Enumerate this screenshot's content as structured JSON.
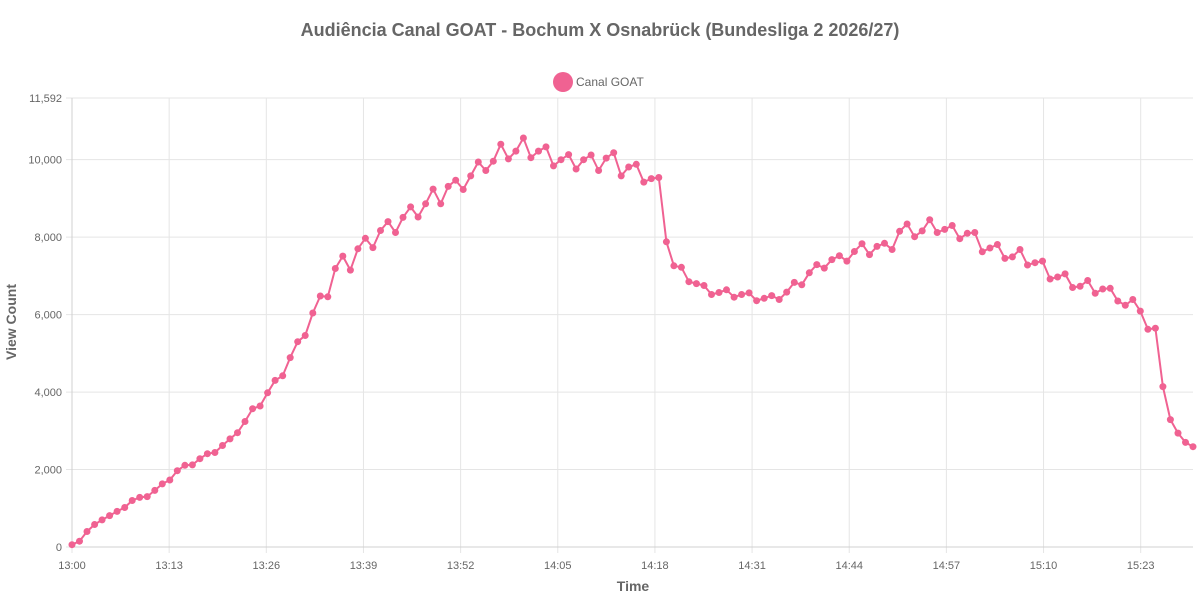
{
  "chart_data": {
    "type": "line",
    "title": "Audiência Canal GOAT - Bochum X Osnabrück (Bundesliga 2 2026/27)",
    "xlabel": "Time",
    "ylabel": "View Count",
    "ylim": [
      0,
      11592
    ],
    "y_ticks": [
      "0",
      "2,000",
      "4,000",
      "6,000",
      "8,000",
      "10,000",
      "11,592"
    ],
    "y_tick_values": [
      0,
      2000,
      4000,
      6000,
      8000,
      10000,
      11592
    ],
    "x_ticks": [
      "13:00",
      "13:13",
      "13:26",
      "13:39",
      "13:52",
      "14:05",
      "14:18",
      "14:31",
      "14:44",
      "14:57",
      "15:10",
      "15:23"
    ],
    "x_range_minutes": [
      0,
      150
    ],
    "grid": true,
    "legend_position": "top-center",
    "color": "#f06292",
    "series": [
      {
        "name": "Canal GOAT",
        "values": [
          60,
          150,
          400,
          580,
          700,
          810,
          920,
          1020,
          1200,
          1280,
          1300,
          1460,
          1630,
          1730,
          1970,
          2110,
          2120,
          2280,
          2410,
          2440,
          2620,
          2790,
          2950,
          3240,
          3570,
          3640,
          3980,
          4300,
          4420,
          4890,
          5300,
          5460,
          6040,
          6480,
          6460,
          7190,
          7510,
          7150,
          7700,
          7970,
          7730,
          8170,
          8400,
          8120,
          8510,
          8780,
          8520,
          8860,
          9240,
          8860,
          9310,
          9470,
          9230,
          9580,
          9940,
          9720,
          9960,
          10400,
          10020,
          10220,
          10560,
          10050,
          10220,
          10330,
          9840,
          10000,
          10130,
          9760,
          10000,
          10120,
          9720,
          10040,
          10180,
          9580,
          9810,
          9880,
          9420,
          9510,
          9540,
          7880,
          7260,
          7220,
          6850,
          6800,
          6750,
          6520,
          6570,
          6640,
          6450,
          6520,
          6560,
          6360,
          6420,
          6490,
          6390,
          6580,
          6830,
          6770,
          7080,
          7290,
          7200,
          7420,
          7520,
          7380,
          7630,
          7830,
          7550,
          7760,
          7840,
          7680,
          8150,
          8340,
          8010,
          8160,
          8450,
          8120,
          8200,
          8300,
          7960,
          8100,
          8120,
          7620,
          7720,
          7810,
          7450,
          7490,
          7680,
          7280,
          7340,
          7380,
          6920,
          6970,
          7050,
          6700,
          6730,
          6880,
          6550,
          6660,
          6680,
          6350,
          6240,
          6390,
          6090,
          5620,
          5650,
          4140,
          3290,
          2940,
          2700,
          2590
        ]
      }
    ]
  }
}
